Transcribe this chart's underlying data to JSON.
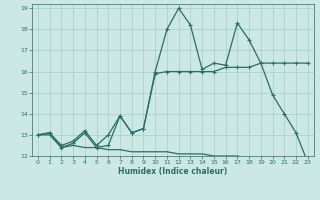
{
  "xlabel": "Humidex (Indice chaleur)",
  "bg_color": "#cce8e4",
  "grid_color": "#aacccc",
  "line_color": "#2a6e64",
  "xlim": [
    -0.5,
    23.5
  ],
  "ylim": [
    12,
    19.2
  ],
  "yticks": [
    12,
    13,
    14,
    15,
    16,
    17,
    18,
    19
  ],
  "xticks": [
    0,
    1,
    2,
    3,
    4,
    5,
    6,
    7,
    8,
    9,
    10,
    11,
    12,
    13,
    14,
    15,
    16,
    17,
    18,
    19,
    20,
    21,
    22,
    23
  ],
  "line1_x": [
    0,
    1,
    2,
    3,
    4,
    5,
    6,
    7,
    8,
    9,
    10,
    11,
    12,
    13,
    14,
    15,
    16,
    17,
    18,
    19,
    20,
    21,
    22,
    23
  ],
  "line1_y": [
    13.0,
    13.1,
    12.4,
    12.6,
    13.1,
    12.4,
    12.5,
    13.9,
    13.1,
    13.3,
    16.0,
    18.0,
    19.0,
    18.2,
    16.1,
    16.4,
    16.3,
    18.3,
    17.5,
    16.4,
    14.9,
    14.0,
    13.1,
    11.7
  ],
  "line2_x": [
    0,
    1,
    2,
    3,
    4,
    5,
    6,
    7,
    8,
    9,
    10,
    11,
    12,
    13,
    14,
    15,
    16,
    17,
    18,
    19,
    20,
    21,
    22,
    23
  ],
  "line2_y": [
    13.0,
    13.1,
    12.5,
    12.7,
    13.2,
    12.5,
    13.0,
    13.9,
    13.1,
    13.3,
    15.9,
    16.0,
    16.0,
    16.0,
    16.0,
    16.0,
    16.2,
    16.2,
    16.2,
    16.4,
    16.4,
    16.4,
    16.4,
    16.4
  ],
  "line3_x": [
    0,
    1,
    2,
    3,
    4,
    5,
    6,
    7,
    8,
    9,
    10,
    11,
    12,
    13,
    14,
    15,
    16,
    17,
    18,
    19,
    20,
    21,
    22,
    23
  ],
  "line3_y": [
    13.0,
    13.0,
    12.4,
    12.5,
    12.4,
    12.4,
    12.3,
    12.3,
    12.2,
    12.2,
    12.2,
    12.2,
    12.1,
    12.1,
    12.1,
    12.0,
    12.0,
    12.0,
    11.9,
    11.9,
    11.8,
    11.8,
    11.7,
    11.7
  ]
}
